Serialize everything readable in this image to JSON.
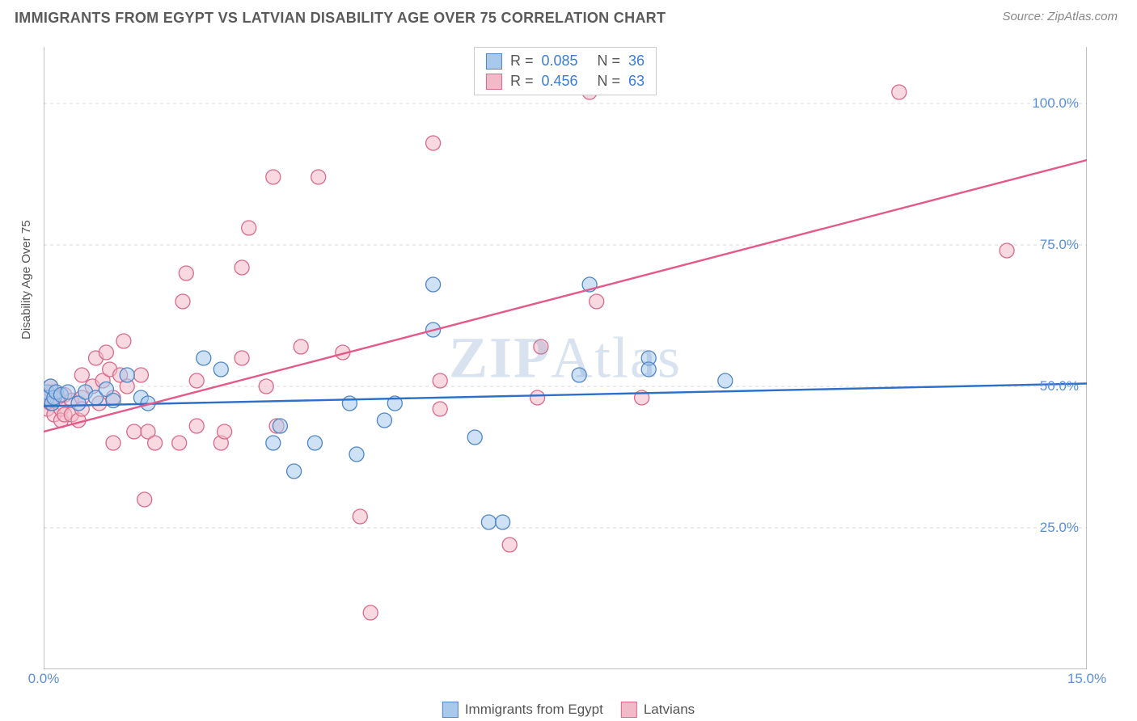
{
  "title": "IMMIGRANTS FROM EGYPT VS LATVIAN DISABILITY AGE OVER 75 CORRELATION CHART",
  "source": "Source: ZipAtlas.com",
  "watermark": {
    "bold": "ZIP",
    "light": "Atlas"
  },
  "ylabel": "Disability Age Over 75",
  "chart": {
    "type": "scatter",
    "background_color": "#ffffff",
    "grid_color": "#d8d8d8",
    "grid_dash": "4,4",
    "axis_color": "#999999",
    "xlim": [
      0,
      15
    ],
    "ylim": [
      0,
      110
    ],
    "xtick_labels": [
      {
        "x": 0,
        "label": "0.0%"
      },
      {
        "x": 15,
        "label": "15.0%"
      }
    ],
    "xtick_minor": [
      1.5,
      3,
      4.5,
      6,
      7.5,
      9,
      10.5,
      12,
      13.5
    ],
    "ytick_labels": [
      {
        "y": 25,
        "label": "25.0%"
      },
      {
        "y": 50,
        "label": "50.0%"
      },
      {
        "y": 75,
        "label": "75.0%"
      },
      {
        "y": 100,
        "label": "100.0%"
      }
    ],
    "axis_label_color": "#5a8fd6",
    "axis_label_fontsize": 17,
    "marker_radius": 9,
    "marker_opacity": 0.55,
    "marker_stroke_width": 1.3,
    "line_width": 2.4
  },
  "series": [
    {
      "name": "Immigrants from Egypt",
      "fill_color": "#a8c8ec",
      "stroke_color": "#4f86c6",
      "line_color": "#2d6fc9",
      "R": "0.085",
      "N": "36",
      "regression": {
        "x1": 0,
        "y1": 46.5,
        "x2": 15,
        "y2": 50.5
      },
      "points": [
        {
          "x": 0.05,
          "y": 49
        },
        {
          "x": 0.05,
          "y": 48
        },
        {
          "x": 0.1,
          "y": 50
        },
        {
          "x": 0.12,
          "y": 47
        },
        {
          "x": 0.15,
          "y": 48
        },
        {
          "x": 0.18,
          "y": 49
        },
        {
          "x": 0.25,
          "y": 48.5
        },
        {
          "x": 0.35,
          "y": 49
        },
        {
          "x": 0.5,
          "y": 47
        },
        {
          "x": 0.6,
          "y": 49
        },
        {
          "x": 0.75,
          "y": 48
        },
        {
          "x": 0.9,
          "y": 49.5
        },
        {
          "x": 1.0,
          "y": 47.5
        },
        {
          "x": 1.2,
          "y": 52
        },
        {
          "x": 1.4,
          "y": 48
        },
        {
          "x": 1.5,
          "y": 47
        },
        {
          "x": 2.3,
          "y": 55
        },
        {
          "x": 2.55,
          "y": 53
        },
        {
          "x": 3.4,
          "y": 43
        },
        {
          "x": 3.3,
          "y": 40
        },
        {
          "x": 3.6,
          "y": 35
        },
        {
          "x": 3.9,
          "y": 40
        },
        {
          "x": 4.4,
          "y": 47
        },
        {
          "x": 4.5,
          "y": 38
        },
        {
          "x": 4.9,
          "y": 44
        },
        {
          "x": 5.05,
          "y": 47
        },
        {
          "x": 5.6,
          "y": 68
        },
        {
          "x": 5.6,
          "y": 60
        },
        {
          "x": 6.2,
          "y": 41
        },
        {
          "x": 6.4,
          "y": 26
        },
        {
          "x": 6.6,
          "y": 26
        },
        {
          "x": 7.7,
          "y": 52
        },
        {
          "x": 7.85,
          "y": 68
        },
        {
          "x": 8.7,
          "y": 55
        },
        {
          "x": 8.7,
          "y": 53
        },
        {
          "x": 9.8,
          "y": 51
        }
      ]
    },
    {
      "name": "Latvians",
      "fill_color": "#f2b9c8",
      "stroke_color": "#d96a8c",
      "line_color": "#e35a8a",
      "R": "0.456",
      "N": "63",
      "regression": {
        "x1": 0,
        "y1": 42,
        "x2": 15,
        "y2": 90
      },
      "points": [
        {
          "x": 0.05,
          "y": 46
        },
        {
          "x": 0.05,
          "y": 48
        },
        {
          "x": 0.1,
          "y": 47
        },
        {
          "x": 0.12,
          "y": 49
        },
        {
          "x": 0.1,
          "y": 50
        },
        {
          "x": 0.15,
          "y": 45
        },
        {
          "x": 0.15,
          "y": 47.5
        },
        {
          "x": 0.2,
          "y": 48
        },
        {
          "x": 0.25,
          "y": 46
        },
        {
          "x": 0.25,
          "y": 44
        },
        {
          "x": 0.3,
          "y": 45
        },
        {
          "x": 0.3,
          "y": 48.5
        },
        {
          "x": 0.4,
          "y": 45
        },
        {
          "x": 0.4,
          "y": 47.5
        },
        {
          "x": 0.5,
          "y": 44
        },
        {
          "x": 0.55,
          "y": 48
        },
        {
          "x": 0.55,
          "y": 46
        },
        {
          "x": 0.55,
          "y": 52
        },
        {
          "x": 0.7,
          "y": 50
        },
        {
          "x": 0.75,
          "y": 55
        },
        {
          "x": 0.8,
          "y": 47
        },
        {
          "x": 0.85,
          "y": 51
        },
        {
          "x": 0.9,
          "y": 56
        },
        {
          "x": 0.95,
          "y": 53
        },
        {
          "x": 1.0,
          "y": 48
        },
        {
          "x": 1.0,
          "y": 40
        },
        {
          "x": 1.1,
          "y": 52
        },
        {
          "x": 1.15,
          "y": 58
        },
        {
          "x": 1.2,
          "y": 50
        },
        {
          "x": 1.3,
          "y": 42
        },
        {
          "x": 1.4,
          "y": 52
        },
        {
          "x": 1.45,
          "y": 30
        },
        {
          "x": 1.5,
          "y": 42
        },
        {
          "x": 1.6,
          "y": 40
        },
        {
          "x": 1.95,
          "y": 40
        },
        {
          "x": 2.0,
          "y": 65
        },
        {
          "x": 2.05,
          "y": 70
        },
        {
          "x": 2.2,
          "y": 43
        },
        {
          "x": 2.2,
          "y": 51
        },
        {
          "x": 2.55,
          "y": 40
        },
        {
          "x": 2.6,
          "y": 42
        },
        {
          "x": 2.85,
          "y": 71
        },
        {
          "x": 2.85,
          "y": 55
        },
        {
          "x": 2.95,
          "y": 78
        },
        {
          "x": 3.2,
          "y": 50
        },
        {
          "x": 3.3,
          "y": 87
        },
        {
          "x": 3.35,
          "y": 43
        },
        {
          "x": 3.7,
          "y": 57
        },
        {
          "x": 3.95,
          "y": 87
        },
        {
          "x": 4.3,
          "y": 56
        },
        {
          "x": 4.55,
          "y": 27
        },
        {
          "x": 4.7,
          "y": 10
        },
        {
          "x": 5.6,
          "y": 93
        },
        {
          "x": 5.7,
          "y": 46
        },
        {
          "x": 5.7,
          "y": 51
        },
        {
          "x": 6.7,
          "y": 22
        },
        {
          "x": 7.1,
          "y": 48
        },
        {
          "x": 7.15,
          "y": 57
        },
        {
          "x": 7.85,
          "y": 102
        },
        {
          "x": 7.95,
          "y": 65
        },
        {
          "x": 8.6,
          "y": 48
        },
        {
          "x": 12.3,
          "y": 102
        },
        {
          "x": 13.85,
          "y": 74
        }
      ]
    }
  ],
  "legend_top": [
    {
      "series_idx": 0,
      "R_label": "R =",
      "N_label": "N ="
    },
    {
      "series_idx": 1,
      "R_label": "R =",
      "N_label": "N ="
    }
  ],
  "legend_bottom": [
    {
      "series_idx": 0
    },
    {
      "series_idx": 1
    }
  ]
}
